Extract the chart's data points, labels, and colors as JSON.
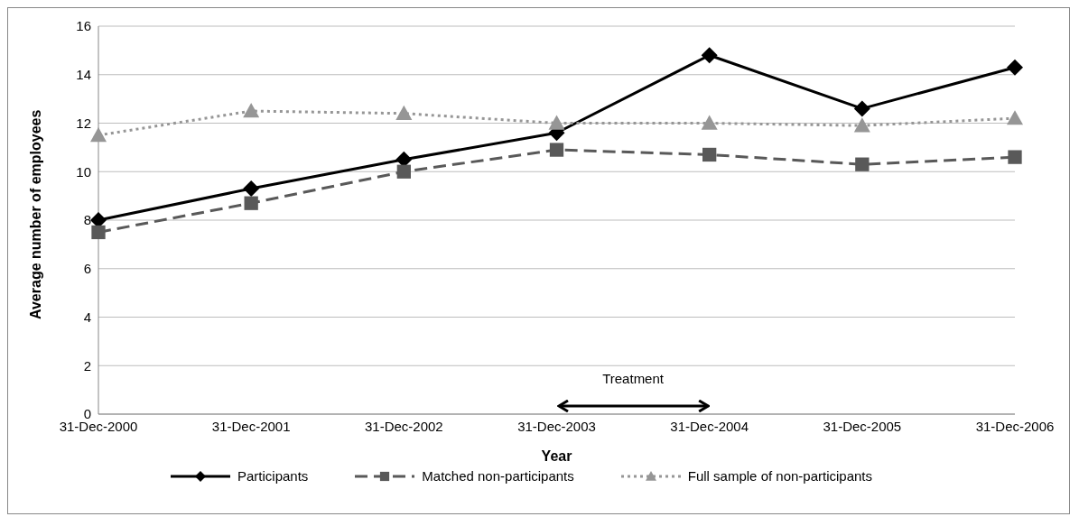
{
  "chart_data": {
    "type": "line",
    "xlabel": "Year",
    "ylabel": "Average number of employees",
    "categories": [
      "31-Dec-2000",
      "31-Dec-2001",
      "31-Dec-2002",
      "31-Dec-2003",
      "31-Dec-2004",
      "31-Dec-2005",
      "31-Dec-2006"
    ],
    "series": [
      {
        "name": "Participants",
        "color": "#000000",
        "marker": "diamond",
        "line_style": "solid",
        "values": [
          8.0,
          9.3,
          10.5,
          11.6,
          14.8,
          12.6,
          14.3
        ]
      },
      {
        "name": "Matched non-participants",
        "color": "#595959",
        "marker": "square",
        "line_style": "dashed",
        "values": [
          7.5,
          8.7,
          10.0,
          10.9,
          10.7,
          10.3,
          10.6
        ]
      },
      {
        "name": "Full sample of non-participants",
        "color": "#969696",
        "marker": "triangle",
        "line_style": "dotted",
        "values": [
          11.5,
          12.5,
          12.4,
          12.0,
          12.0,
          11.9,
          12.2
        ]
      }
    ],
    "ylim": [
      0,
      16
    ],
    "yticks": [
      0,
      2,
      4,
      6,
      8,
      10,
      12,
      14,
      16
    ],
    "grid": "y",
    "legend": "bottom",
    "annotations": [
      "Treatment"
    ]
  }
}
